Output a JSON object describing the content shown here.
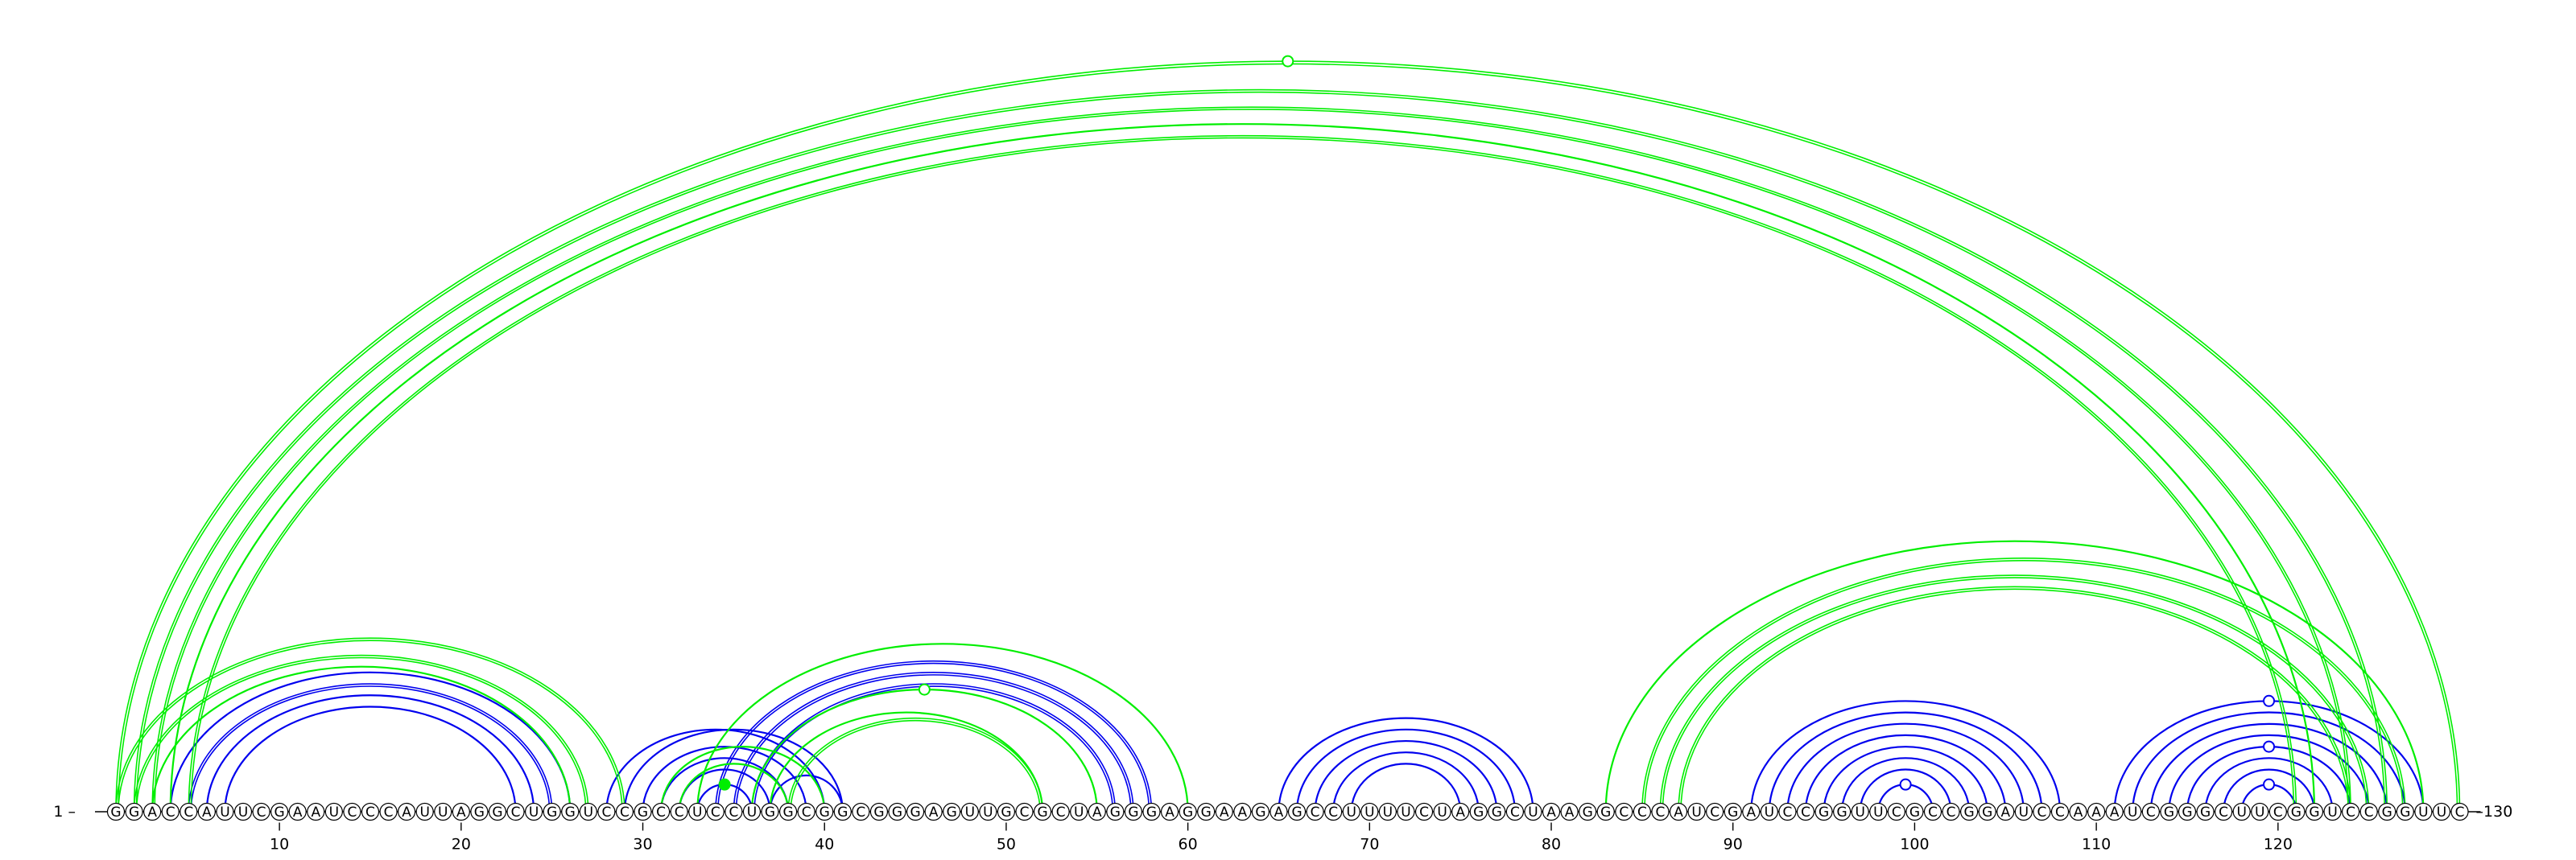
{
  "diagram": {
    "type": "rna-arc-diagram",
    "sequence": "GGACCAUUCGAAUCCCAUUAGGCUGGUCCGCCUCCUGGCGGCGGGAGUUGCGCUAGGGAGGAAGAGCCUUUUCUAGGCUAAGGCCCAUCGAUCCGGUUCGCCGGAUCCAAAUCGGGCUUCGGUCCGGUUC",
    "start_label": "1",
    "end_label": "130",
    "tick_positions": [
      10,
      20,
      30,
      40,
      50,
      60,
      70,
      80,
      90,
      100,
      110,
      120
    ],
    "colors": {
      "blue": "#0000ee",
      "green": "#00ee00"
    },
    "arcs": {
      "green": [
        {
          "i": 1,
          "j": 130,
          "w": 4
        },
        {
          "i": 2,
          "j": 126,
          "w": 4
        },
        {
          "i": 3,
          "j": 124,
          "w": 4
        },
        {
          "i": 4,
          "j": 122,
          "w": 2
        },
        {
          "i": 5,
          "j": 121,
          "w": 4
        },
        {
          "i": 1,
          "j": 29,
          "w": 4
        },
        {
          "i": 2,
          "j": 27,
          "w": 4
        },
        {
          "i": 3,
          "j": 26,
          "w": 2
        },
        {
          "i": 83,
          "j": 128,
          "w": 2
        },
        {
          "i": 85,
          "j": 127,
          "w": 4
        },
        {
          "i": 86,
          "j": 125,
          "w": 4
        },
        {
          "i": 87,
          "j": 124,
          "w": 4
        },
        {
          "i": 33,
          "j": 60,
          "w": 2
        },
        {
          "i": 36,
          "j": 55,
          "w": 2
        },
        {
          "i": 37,
          "j": 52,
          "w": 2
        },
        {
          "i": 38,
          "j": 52,
          "w": 4
        },
        {
          "i": 31,
          "j": 40,
          "w": 2
        },
        {
          "i": 32,
          "j": 38,
          "w": 2
        }
      ],
      "blue": [
        {
          "i": 4,
          "j": 26,
          "w": 2
        },
        {
          "i": 5,
          "j": 25,
          "w": 4
        },
        {
          "i": 6,
          "j": 24,
          "w": 2
        },
        {
          "i": 7,
          "j": 23,
          "w": 2
        },
        {
          "i": 28,
          "j": 40,
          "w": 2
        },
        {
          "i": 29,
          "j": 41,
          "w": 2
        },
        {
          "i": 30,
          "j": 39,
          "w": 2
        },
        {
          "i": 31,
          "j": 38,
          "w": 2
        },
        {
          "i": 32,
          "j": 37,
          "w": 2
        },
        {
          "i": 33,
          "j": 36,
          "w": 2
        },
        {
          "i": 34,
          "j": 58,
          "w": 4
        },
        {
          "i": 35,
          "j": 57,
          "w": 4
        },
        {
          "i": 36,
          "j": 56,
          "w": 4
        },
        {
          "i": 37,
          "j": 41,
          "w": 2
        },
        {
          "i": 65,
          "j": 79,
          "w": 2
        },
        {
          "i": 66,
          "j": 78,
          "w": 2
        },
        {
          "i": 67,
          "j": 77,
          "w": 2
        },
        {
          "i": 68,
          "j": 76,
          "w": 2
        },
        {
          "i": 69,
          "j": 75,
          "w": 2
        },
        {
          "i": 91,
          "j": 108,
          "w": 2
        },
        {
          "i": 92,
          "j": 107,
          "w": 2
        },
        {
          "i": 93,
          "j": 106,
          "w": 2
        },
        {
          "i": 94,
          "j": 105,
          "w": 2
        },
        {
          "i": 95,
          "j": 104,
          "w": 2
        },
        {
          "i": 96,
          "j": 103,
          "w": 2
        },
        {
          "i": 97,
          "j": 102,
          "w": 2
        },
        {
          "i": 98,
          "j": 101,
          "w": 2
        },
        {
          "i": 111,
          "j": 128,
          "w": 2
        },
        {
          "i": 112,
          "j": 127,
          "w": 2
        },
        {
          "i": 113,
          "j": 126,
          "w": 2
        },
        {
          "i": 114,
          "j": 125,
          "w": 2
        },
        {
          "i": 115,
          "j": 124,
          "w": 2
        },
        {
          "i": 116,
          "j": 123,
          "w": 2
        },
        {
          "i": 117,
          "j": 122,
          "w": 2
        },
        {
          "i": 118,
          "j": 121,
          "w": 2
        }
      ]
    },
    "markers": [
      {
        "i": 1,
        "j": 130,
        "color": "green",
        "fill": "open"
      },
      {
        "i": 33,
        "j": 36,
        "color": "green",
        "fill": "filled"
      },
      {
        "i": 36,
        "j": 55,
        "color": "green",
        "fill": "open"
      },
      {
        "i": 98,
        "j": 101,
        "color": "blue",
        "fill": "open"
      },
      {
        "i": 111,
        "j": 128,
        "color": "blue",
        "fill": "open"
      },
      {
        "i": 115,
        "j": 124,
        "color": "blue",
        "fill": "open"
      },
      {
        "i": 118,
        "j": 121,
        "color": "blue",
        "fill": "open"
      }
    ]
  }
}
